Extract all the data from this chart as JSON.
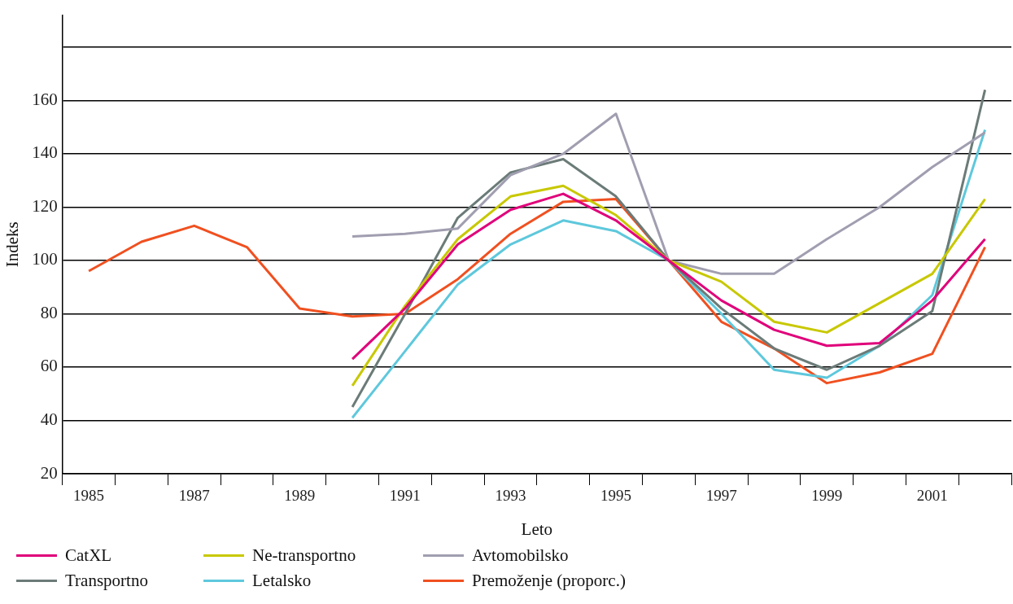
{
  "chart_data": {
    "type": "line",
    "xlabel": "Leto",
    "ylabel": "Indeks",
    "categories": [
      "1985",
      null,
      "1987",
      null,
      "1989",
      null,
      "1991",
      null,
      "1993",
      null,
      "1995",
      null,
      "1997",
      null,
      "1999",
      null,
      "2001",
      null
    ],
    "series": [
      {
        "name": "CatXL",
        "color": "#e0007a",
        "values": [
          null,
          null,
          null,
          null,
          null,
          63,
          82,
          106,
          119,
          125,
          115,
          100,
          85,
          74,
          68,
          69,
          85,
          108
        ]
      },
      {
        "name": "Ne-transportno",
        "color": "#c8c800",
        "values": [
          null,
          null,
          null,
          null,
          null,
          53,
          83,
          108,
          124,
          128,
          117,
          100,
          92,
          77,
          73,
          84,
          95,
          123
        ]
      },
      {
        "name": "Avtomobilsko",
        "color": "#a09eb0",
        "values": [
          null,
          null,
          null,
          null,
          null,
          109,
          110,
          112,
          132,
          140,
          155,
          100,
          95,
          95,
          108,
          120,
          135,
          148
        ]
      },
      {
        "name": "Transportno",
        "color": "#6b7b78",
        "values": [
          null,
          null,
          null,
          null,
          null,
          45,
          80,
          116,
          133,
          138,
          124,
          100,
          82,
          67,
          59,
          68,
          81,
          164
        ]
      },
      {
        "name": "Letalsko",
        "color": "#5ec8dc",
        "values": [
          null,
          null,
          null,
          null,
          null,
          41,
          66,
          91,
          106,
          115,
          111,
          100,
          80,
          59,
          56,
          68,
          87,
          149
        ]
      },
      {
        "name": "Premoženje (proporc.)",
        "color": "#f05020",
        "values": [
          96,
          107,
          113,
          105,
          82,
          79,
          80,
          93,
          110,
          122,
          123,
          100,
          77,
          67,
          54,
          58,
          65,
          105
        ]
      }
    ],
    "ylim": [
      20,
      192
    ],
    "yticks": [
      20,
      40,
      60,
      80,
      100,
      120,
      140,
      160,
      {
        "value": 180,
        "label": null
      }
    ],
    "grid": "y",
    "legend": "bottom",
    "marker": "none",
    "line_style": "solid"
  }
}
